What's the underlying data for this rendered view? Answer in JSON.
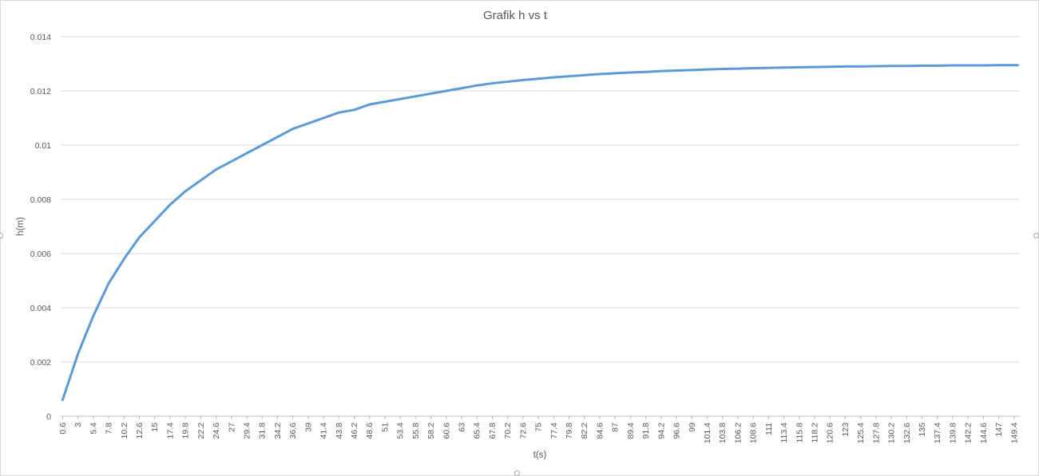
{
  "chart_data": {
    "type": "line",
    "title": "Grafik h vs t",
    "xlabel": "t(s)",
    "ylabel": "h(m)",
    "ylim": [
      0,
      0.014
    ],
    "y_ticks": [
      "0",
      "0.002",
      "0.004",
      "0.006",
      "0.008",
      "0.01",
      "0.012",
      "0.014"
    ],
    "x_tick_labels": [
      "0.6",
      "3",
      "5.4",
      "7.8",
      "10.2",
      "12.6",
      "15",
      "17.4",
      "19.8",
      "22.2",
      "24.6",
      "27",
      "29.4",
      "31.8",
      "34.2",
      "36.6",
      "39",
      "41.4",
      "43.8",
      "46.2",
      "48.6",
      "51",
      "53.4",
      "55.8",
      "58.2",
      "60.6",
      "63",
      "65.4",
      "67.8",
      "70.2",
      "72.6",
      "75",
      "77.4",
      "79.8",
      "82.2",
      "84.6",
      "87",
      "89.4",
      "91.8",
      "94.2",
      "96.6",
      "99",
      "101.4",
      "103.8",
      "106.2",
      "108.6",
      "111",
      "113.4",
      "115.8",
      "118.2",
      "120.6",
      "123",
      "125.4",
      "127.8",
      "130.2",
      "132.6",
      "135",
      "137.4",
      "139.8",
      "142.2",
      "144.6",
      "147",
      "149.4"
    ],
    "x_start": 0.6,
    "x_step": 0.6,
    "x_count": 250,
    "grid": true,
    "legend": "none",
    "series": [
      {
        "color": "#5B9BD5",
        "points": [
          [
            0.6,
            0.0006
          ],
          [
            3,
            0.0023
          ],
          [
            5.4,
            0.0037
          ],
          [
            7.8,
            0.0049
          ],
          [
            10.2,
            0.0058
          ],
          [
            12.6,
            0.0066
          ],
          [
            15,
            0.0072
          ],
          [
            17.4,
            0.0078
          ],
          [
            19.8,
            0.0083
          ],
          [
            22.2,
            0.0087
          ],
          [
            24.6,
            0.0091
          ],
          [
            27,
            0.0094
          ],
          [
            29.4,
            0.0097
          ],
          [
            31.8,
            0.01
          ],
          [
            34.2,
            0.0103
          ],
          [
            36.6,
            0.0106
          ],
          [
            39,
            0.0108
          ],
          [
            41.4,
            0.011
          ],
          [
            43.8,
            0.0112
          ],
          [
            46.2,
            0.0113
          ],
          [
            48.6,
            0.0115
          ],
          [
            51,
            0.0116
          ],
          [
            53.4,
            0.0117
          ],
          [
            55.8,
            0.0118
          ],
          [
            58.2,
            0.0119
          ],
          [
            60.6,
            0.012
          ],
          [
            63,
            0.0121
          ],
          [
            65.4,
            0.0122
          ],
          [
            67.8,
            0.01228
          ],
          [
            70.2,
            0.01234
          ],
          [
            72.6,
            0.0124
          ],
          [
            75,
            0.01245
          ],
          [
            77.4,
            0.0125
          ],
          [
            79.8,
            0.01254
          ],
          [
            82.2,
            0.01258
          ],
          [
            84.6,
            0.01262
          ],
          [
            87,
            0.01265
          ],
          [
            89.4,
            0.01268
          ],
          [
            91.8,
            0.0127
          ],
          [
            94.2,
            0.01273
          ],
          [
            96.6,
            0.01275
          ],
          [
            99,
            0.01277
          ],
          [
            101.4,
            0.01279
          ],
          [
            103.8,
            0.01281
          ],
          [
            106.2,
            0.01282
          ],
          [
            108.6,
            0.01284
          ],
          [
            111,
            0.01285
          ],
          [
            113.4,
            0.01286
          ],
          [
            115.8,
            0.01287
          ],
          [
            118.2,
            0.01288
          ],
          [
            120.6,
            0.01289
          ],
          [
            123,
            0.0129
          ],
          [
            125.4,
            0.0129
          ],
          [
            127.8,
            0.01291
          ],
          [
            130.2,
            0.01292
          ],
          [
            132.6,
            0.01292
          ],
          [
            135,
            0.01293
          ],
          [
            137.4,
            0.01293
          ],
          [
            139.8,
            0.01294
          ],
          [
            142.2,
            0.01294
          ],
          [
            144.6,
            0.01294
          ],
          [
            147,
            0.01295
          ],
          [
            149.4,
            0.01295
          ],
          [
            150,
            0.01295
          ]
        ]
      }
    ]
  }
}
